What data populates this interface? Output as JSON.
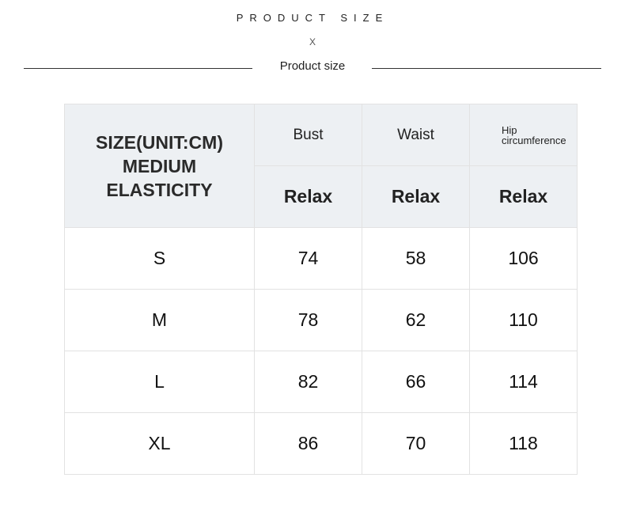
{
  "heading": "PRODUCT SIZE",
  "separator": "X",
  "subheading": "Product size",
  "table": {
    "corner": [
      "SIZE(UNIT:CM)",
      "MEDIUM",
      "ELASTICITY"
    ],
    "columns": [
      "Bust",
      "Waist",
      "Hip circumference"
    ],
    "fit": [
      "Relax",
      "Relax",
      "Relax"
    ],
    "rows": [
      [
        "S",
        "74",
        "58",
        "106"
      ],
      [
        "M",
        "78",
        "62",
        "110"
      ],
      [
        "L",
        "82",
        "66",
        "114"
      ],
      [
        "XL",
        "86",
        "70",
        "118"
      ]
    ]
  }
}
